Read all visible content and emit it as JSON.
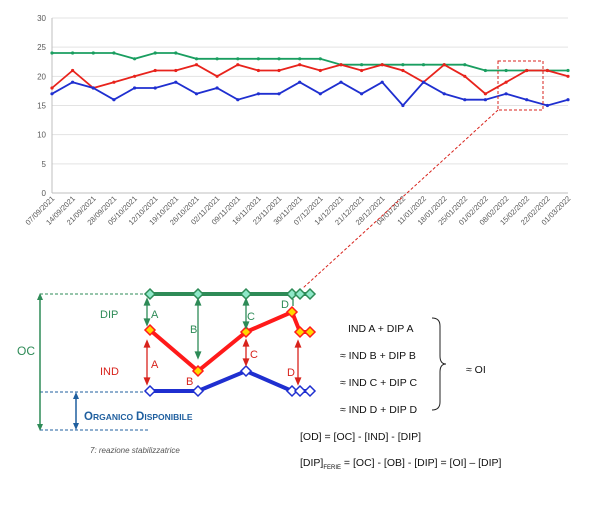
{
  "chart_data": {
    "type": "line",
    "ylim": [
      0,
      30
    ],
    "yticks": [
      0,
      5,
      10,
      15,
      20,
      25,
      30
    ],
    "categories": [
      "07/09/2021",
      "14/09/2021",
      "21/09/2021",
      "28/09/2021",
      "05/10/2021",
      "12/10/2021",
      "19/10/2021",
      "26/10/2021",
      "02/11/2021",
      "09/11/2021",
      "16/11/2021",
      "23/11/2021",
      "30/11/2021",
      "07/12/2021",
      "14/12/2021",
      "21/12/2021",
      "28/12/2021",
      "04/01/2022",
      "11/01/2022",
      "18/01/2022",
      "25/01/2022",
      "01/02/2022",
      "08/02/2022",
      "15/02/2022",
      "22/02/2022",
      "01/03/2022"
    ],
    "grid": true,
    "series": [
      {
        "color": "#1a9e60",
        "values": [
          24,
          24,
          24,
          24,
          23,
          24,
          24,
          23,
          23,
          23,
          23,
          23,
          23,
          23,
          22,
          22,
          22,
          22,
          22,
          22,
          22,
          21,
          21,
          21,
          21,
          21
        ]
      },
      {
        "color": "#e8231c",
        "values": [
          18,
          21,
          18,
          19,
          20,
          21,
          21,
          22,
          20,
          22,
          21,
          21,
          22,
          21,
          22,
          21,
          22,
          21,
          19,
          22,
          20,
          17,
          19,
          21,
          21,
          20
        ]
      },
      {
        "color": "#1f2fd0",
        "values": [
          17,
          19,
          18,
          16,
          18,
          18,
          19,
          17,
          18,
          16,
          17,
          17,
          19,
          17,
          19,
          17,
          19,
          15,
          19,
          17,
          16,
          16,
          17,
          16,
          15,
          16
        ]
      }
    ]
  },
  "diagram": {
    "oc_label": "OC",
    "dip_label": "DIP",
    "ind_label": "IND",
    "organico_label": "Organico Disponibile",
    "points": [
      "A",
      "B",
      "C",
      "D"
    ],
    "caption": "7: reazione stabilizzatrice",
    "colors": {
      "green": "#2e8b57",
      "red": "#e8231c",
      "blue": "#1f2fd0",
      "navy": "#1f5f9f",
      "yellow": "#ffd700"
    }
  },
  "formulas": {
    "lines": [
      "IND A + DIP A",
      "≈ IND B + DIP B",
      "≈ IND C + DIP C",
      "≈ IND D + DIP D"
    ],
    "approx_oi": "≈ OI",
    "od_eq": "[OD] = [OC] - [IND] - [DIP]",
    "dip_prefix": "[DIP]",
    "dip_sub": "FERIE",
    "dip_rest": " = [OC] - [OB] - [DIP] = [OI] – [DIP]"
  }
}
